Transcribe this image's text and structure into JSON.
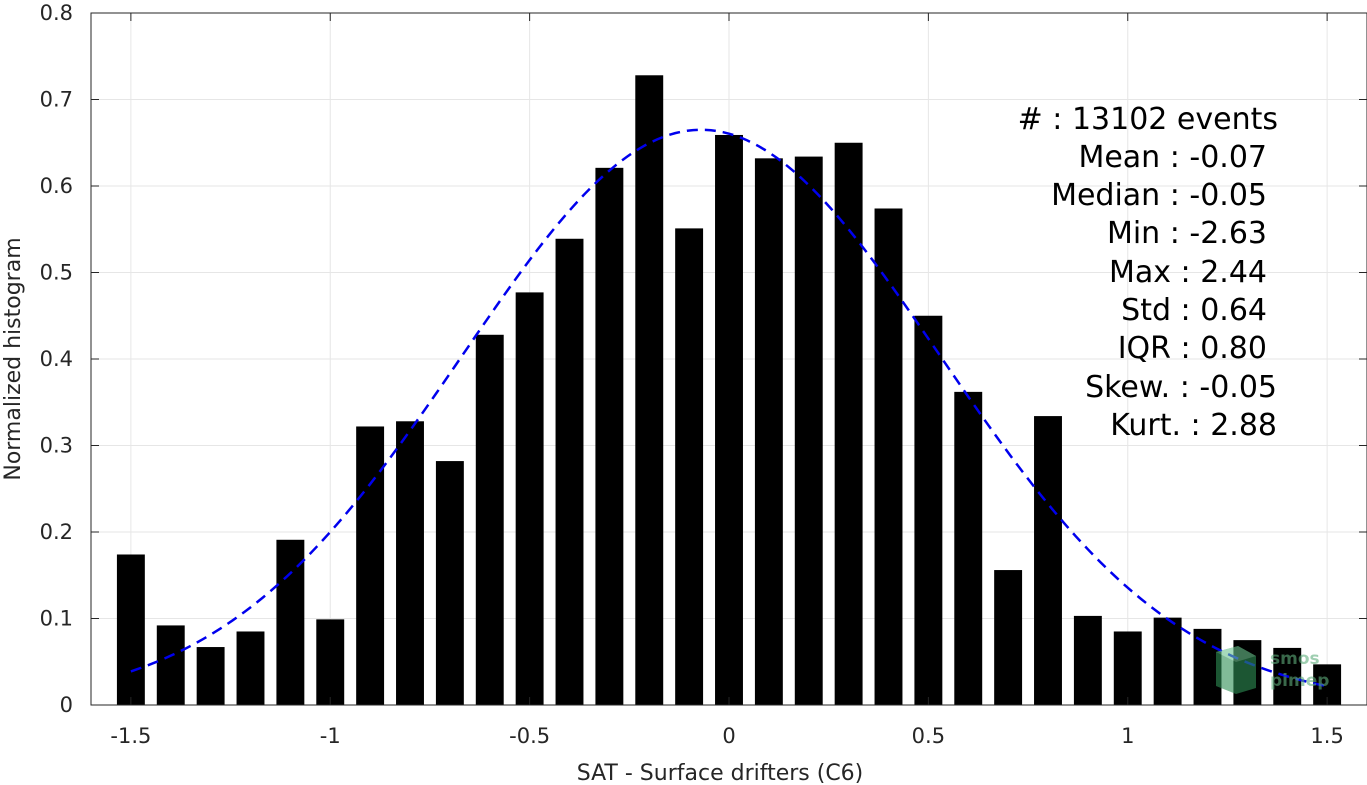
{
  "chart_data": {
    "type": "bar",
    "xlabel": "SAT - Surface drifters (C6)",
    "ylabel": "Normalized histogram",
    "xlim": [
      -1.6,
      1.6
    ],
    "ylim": [
      0,
      0.8
    ],
    "grid": true,
    "bar_color": "#000000",
    "bar_width": 0.07,
    "x_ticks": [
      -1.5,
      -1,
      -0.5,
      0,
      0.5,
      1,
      1.5
    ],
    "x_tick_labels": [
      "-1.5",
      "-1",
      "-0.5",
      "0",
      "0.5",
      "1",
      "1.5"
    ],
    "y_ticks": [
      0,
      0.1,
      0.2,
      0.3,
      0.4,
      0.5,
      0.6,
      0.7,
      0.8
    ],
    "y_tick_labels": [
      "0",
      "0.1",
      "0.2",
      "0.3",
      "0.4",
      "0.5",
      "0.6",
      "0.7",
      "0.8"
    ],
    "x": [
      -1.5,
      -1.4,
      -1.3,
      -1.2,
      -1.1,
      -1.0,
      -0.9,
      -0.8,
      -0.7,
      -0.6,
      -0.5,
      -0.4,
      -0.3,
      -0.2,
      -0.1,
      0.0,
      0.1,
      0.2,
      0.3,
      0.4,
      0.5,
      0.6,
      0.7,
      0.8,
      0.9,
      1.0,
      1.1,
      1.2,
      1.3,
      1.4,
      1.5
    ],
    "values": [
      0.174,
      0.092,
      0.067,
      0.085,
      0.191,
      0.099,
      0.322,
      0.328,
      0.282,
      0.428,
      0.477,
      0.539,
      0.621,
      0.728,
      0.551,
      0.659,
      0.632,
      0.634,
      0.65,
      0.574,
      0.45,
      0.362,
      0.156,
      0.334,
      0.103,
      0.085,
      0.101,
      0.088,
      0.075,
      0.066,
      0.047
    ],
    "fit_curve": {
      "style": "dashed",
      "color": "#0000ee",
      "mean": -0.07,
      "std": 0.6,
      "amplitude": 0.665,
      "x_range": [
        -1.5,
        1.5
      ]
    },
    "stats": [
      "#  : 13102 events",
      "Mean : -0.07",
      "Median : -0.05",
      "Min : -2.63",
      "Max : 2.44",
      "Std : 0.64",
      "IQR : 0.80",
      "Skew. : -0.05",
      "Kurt. : 2.88"
    ],
    "logo": [
      "smos",
      "pimep"
    ]
  }
}
